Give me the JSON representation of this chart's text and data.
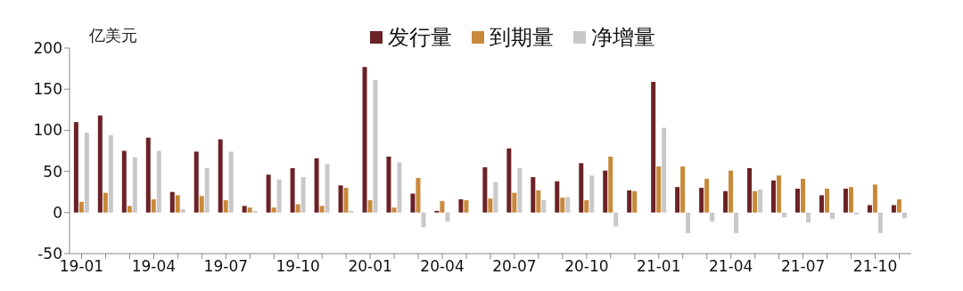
{
  "chart_data": {
    "type": "bar",
    "categories": [
      "19-01",
      null,
      null,
      "19-04",
      null,
      null,
      "19-07",
      null,
      null,
      "19-10",
      null,
      null,
      "20-01",
      null,
      null,
      "20-04",
      null,
      null,
      "20-07",
      null,
      null,
      "20-10",
      null,
      null,
      "21-01",
      null,
      null,
      "21-04",
      null,
      null,
      "21-07",
      null,
      null,
      "21-10",
      null
    ],
    "series": [
      {
        "name": "发行量",
        "color": "#6b2226",
        "values": [
          110,
          118,
          75,
          91,
          25,
          74,
          89,
          8,
          46,
          54,
          66,
          33,
          177,
          68,
          23,
          2,
          16,
          55,
          78,
          43,
          38,
          60,
          51,
          27,
          159,
          31,
          30,
          26,
          54,
          39,
          29,
          21,
          29,
          9,
          9
        ]
      },
      {
        "name": "到期量",
        "color": "#c8893a",
        "values": [
          13,
          24,
          8,
          16,
          21,
          20,
          15,
          6,
          6,
          10,
          8,
          30,
          15,
          6,
          42,
          14,
          15,
          17,
          24,
          27,
          18,
          15,
          68,
          26,
          56,
          56,
          41,
          51,
          26,
          45,
          41,
          29,
          31,
          34,
          16
        ]
      },
      {
        "name": "净增量",
        "color": "#c8c8c8",
        "values": [
          97,
          94,
          67,
          75,
          4,
          54,
          74,
          2,
          40,
          43,
          59,
          2,
          161,
          61,
          -18,
          -11,
          null,
          37,
          54,
          15,
          19,
          45,
          -17,
          null,
          103,
          -25,
          -11,
          -25,
          28,
          -6,
          -12,
          -8,
          -2,
          -25,
          -7
        ]
      }
    ],
    "ylim": [
      -50,
      200
    ],
    "yticks": [
      -50,
      0,
      50,
      100,
      150,
      200
    ],
    "legend": "top",
    "annotations": [
      "亿美元"
    ]
  }
}
